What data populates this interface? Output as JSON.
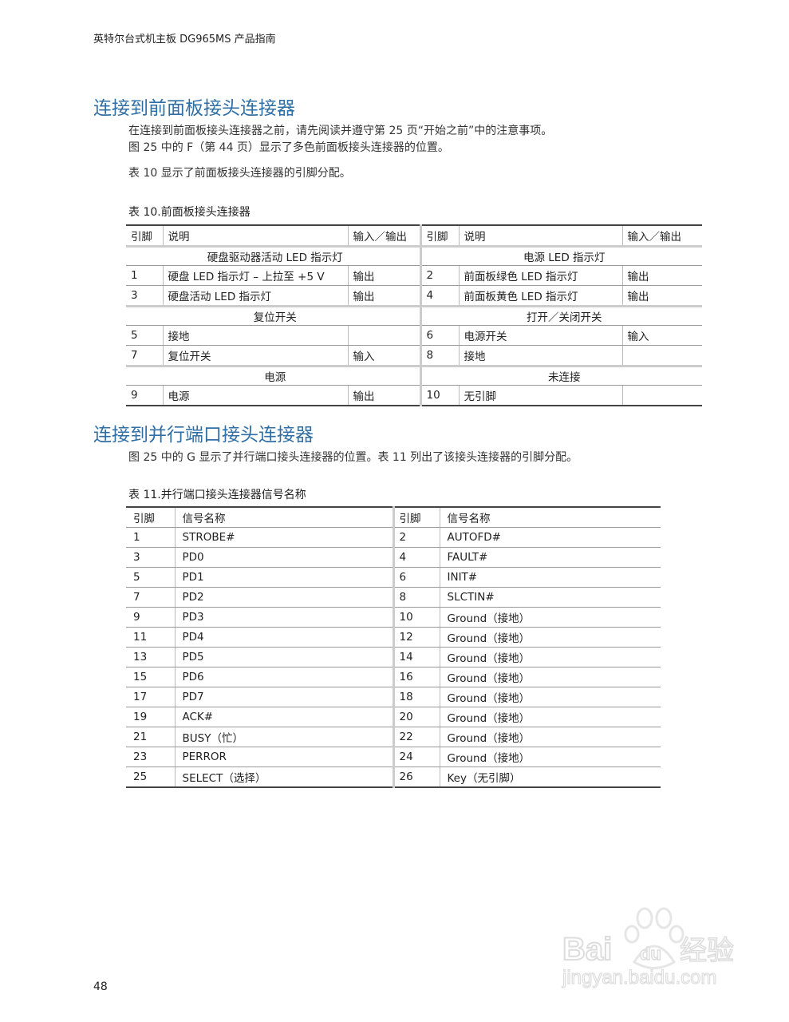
{
  "running_header": "英特尔台式机主板 DG965MS 产品指南",
  "section1": {
    "title": "连接到前面板接头连接器",
    "para1_line1": "在连接到前面板接头连接器之前，请先阅读并遵守第 25 页“开始之前”中的注意事项。",
    "para1_line2": "图 25 中的 F（第 44 页）显示了多色前面板接头连接器的位置。",
    "para2": "表 10 显示了前面板接头连接器的引脚分配。",
    "table_caption": "表 10.前面板接头连接器",
    "table": {
      "headers": [
        "引脚",
        "说明",
        "输入／输出",
        "引脚",
        "说明",
        "输入／输出"
      ],
      "groups": [
        {
          "left_title": "硬盘驱动器活动 LED 指示灯",
          "right_title": "电源 LED 指示灯",
          "rows": [
            [
              "1",
              "硬盘 LED 指示灯 – 上拉至 +5 V",
              "输出",
              "2",
              "前面板绿色 LED 指示灯",
              "输出"
            ],
            [
              "3",
              "硬盘活动 LED 指示灯",
              "输出",
              "4",
              "前面板黄色 LED 指示灯",
              "输出"
            ]
          ]
        },
        {
          "left_title": "复位开关",
          "right_title": "打开／关闭开关",
          "rows": [
            [
              "5",
              "接地",
              "",
              "6",
              "电源开关",
              "输入"
            ],
            [
              "7",
              "复位开关",
              "输入",
              "8",
              "接地",
              ""
            ]
          ]
        },
        {
          "left_title": "电源",
          "right_title": "未连接",
          "rows": [
            [
              "9",
              "电源",
              "输出",
              "10",
              "无引脚",
              ""
            ]
          ]
        }
      ]
    }
  },
  "section2": {
    "title": "连接到并行端口接头连接器",
    "para": "图 25 中的 G 显示了并行端口接头连接器的位置。表 11 列出了该接头连接器的引脚分配。",
    "table_caption": "表 11.并行端口接头连接器信号名称",
    "table": {
      "headers": [
        "引脚",
        "信号名称",
        "引脚",
        "信号名称"
      ],
      "rows": [
        [
          "1",
          "STROBE#",
          "2",
          "AUTOFD#"
        ],
        [
          "3",
          "PD0",
          "4",
          "FAULT#"
        ],
        [
          "5",
          "PD1",
          "6",
          "INIT#"
        ],
        [
          "7",
          "PD2",
          "8",
          "SLCTIN#"
        ],
        [
          "9",
          "PD3",
          "10",
          "Ground（接地）"
        ],
        [
          "11",
          "PD4",
          "12",
          "Ground（接地）"
        ],
        [
          "13",
          "PD5",
          "14",
          "Ground（接地）"
        ],
        [
          "15",
          "PD6",
          "16",
          "Ground（接地）"
        ],
        [
          "17",
          "PD7",
          "18",
          "Ground（接地）"
        ],
        [
          "19",
          "ACK#",
          "20",
          "Ground（接地）"
        ],
        [
          "21",
          "BUSY（忙）",
          "22",
          "Ground（接地）"
        ],
        [
          "23",
          "PERROR",
          "24",
          "Ground（接地）"
        ],
        [
          "25",
          "SELECT（选择）",
          "26",
          "Key（无引脚）"
        ]
      ]
    }
  },
  "page_number": "48",
  "watermark": {
    "brand": "Baidu经验",
    "url": "jingyan.baidu.com"
  },
  "colors": {
    "heading": "#2f6fa6"
  }
}
